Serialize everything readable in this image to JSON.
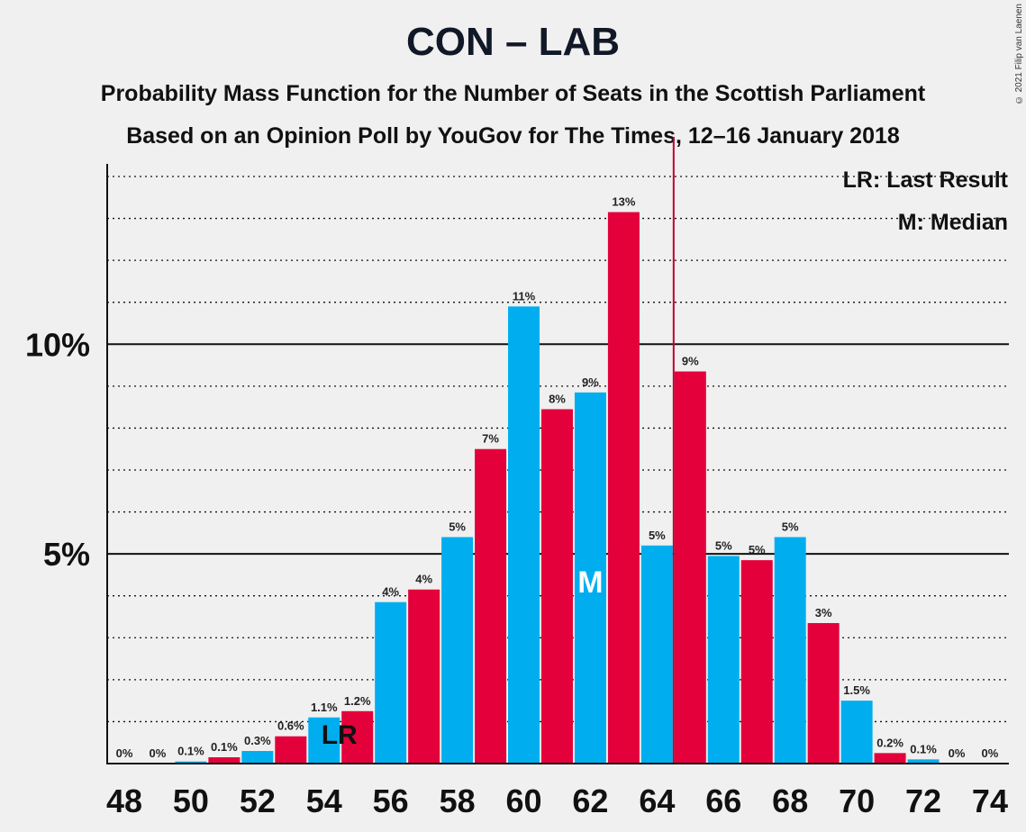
{
  "chart_data": {
    "type": "bar",
    "title": "CON – LAB",
    "subtitle": "Probability Mass Function for the Number of Seats in the Scottish Parliament",
    "subtitle2": "Based on an Opinion Poll by YouGov for The Times, 12–16 January 2018",
    "copyright": "© 2021 Filip van Laenen",
    "legend": [
      "LR: Last Result",
      "M: Median"
    ],
    "legend_position": "top-right",
    "x": [
      48,
      49,
      50,
      51,
      52,
      53,
      54,
      55,
      56,
      57,
      58,
      59,
      60,
      61,
      62,
      63,
      64,
      65,
      66,
      67,
      68,
      69,
      70,
      71,
      72,
      73,
      74
    ],
    "values": [
      0,
      0,
      0.05,
      0.15,
      0.3,
      0.65,
      1.1,
      1.25,
      3.85,
      4.15,
      5.4,
      7.5,
      10.9,
      8.45,
      8.85,
      13.15,
      5.2,
      9.35,
      4.95,
      4.85,
      5.4,
      3.35,
      1.5,
      0.25,
      0.1,
      0,
      0
    ],
    "data_labels": [
      "0%",
      "0%",
      "0.1%",
      "0.1%",
      "0.3%",
      "0.6%",
      "1.1%",
      "1.2%",
      "4%",
      "4%",
      "5%",
      "7%",
      "11%",
      "8%",
      "9%",
      "13%",
      "5%",
      "9%",
      "5%",
      "5%",
      "5%",
      "3%",
      "1.5%",
      "0.2%",
      "0.1%",
      "0%",
      "0%"
    ],
    "x_tick_labels": [
      "48",
      "50",
      "52",
      "54",
      "56",
      "58",
      "60",
      "62",
      "64",
      "66",
      "68",
      "70",
      "72",
      "74"
    ],
    "y_tick_labels": [
      "5%",
      "10%"
    ],
    "y_ticks": [
      5,
      10
    ],
    "ylim": [
      0,
      14.3
    ],
    "grid": "dotted every 1%, solid at 5% and 10%",
    "majority_line_x": 64.5,
    "last_result_x": 55,
    "last_result_label": "LR",
    "median_x": 62,
    "median_label": "M",
    "colors": {
      "con": "#00aeef",
      "lab": "#e4003b",
      "majority": "#c00030",
      "background": "#f0f0f0"
    }
  }
}
